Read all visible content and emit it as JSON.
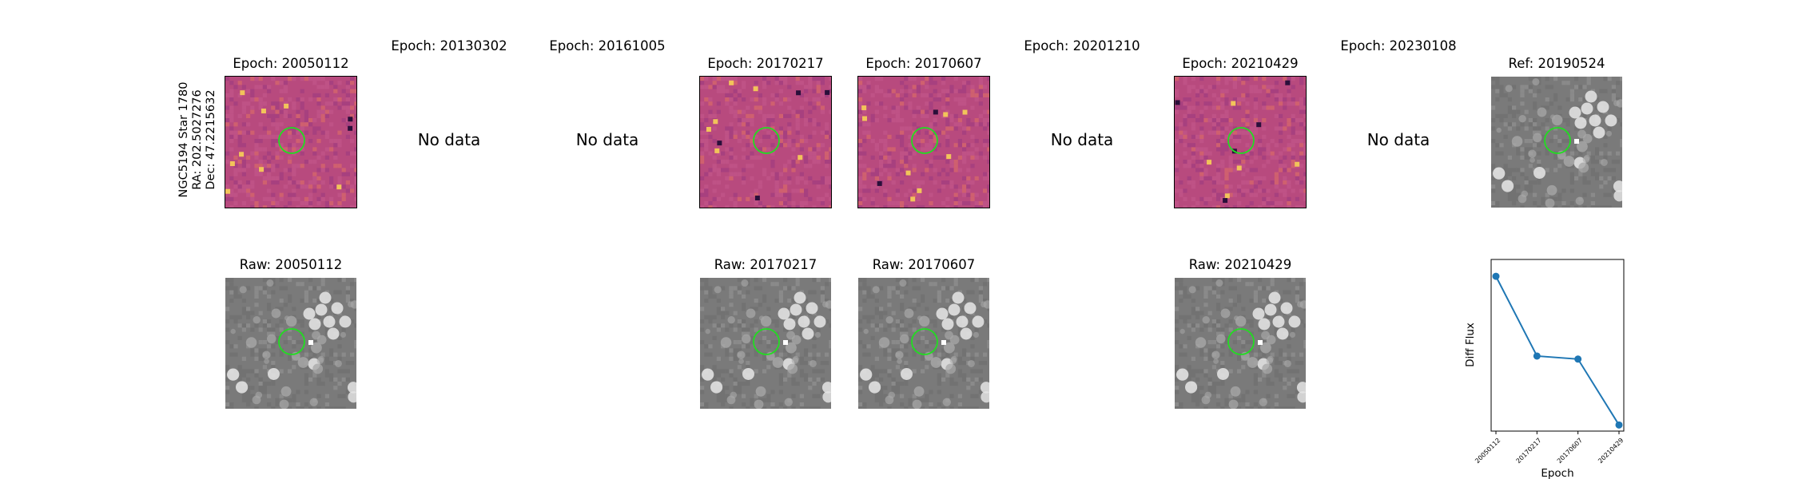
{
  "object": {
    "name": "NGC5194 Star 1780",
    "ra": "RA: 202.5027276",
    "dec": "Dec: 47.2215632"
  },
  "no_data_text": "No data",
  "top_row": [
    {
      "title": "Epoch: 20050112",
      "has_data": true
    },
    {
      "title": "Epoch: 20130302",
      "has_data": false
    },
    {
      "title": "Epoch: 20161005",
      "has_data": false
    },
    {
      "title": "Epoch: 20170217",
      "has_data": true
    },
    {
      "title": "Epoch: 20170607",
      "has_data": true
    },
    {
      "title": "Epoch: 20201210",
      "has_data": false
    },
    {
      "title": "Epoch: 20210429",
      "has_data": true
    },
    {
      "title": "Epoch: 20230108",
      "has_data": false
    },
    {
      "title": "Ref: 20190524",
      "has_data": true
    }
  ],
  "bottom_row": [
    {
      "title": "Raw: 20050112"
    },
    {
      "title": "Raw: 20170217"
    },
    {
      "title": "Raw: 20170607"
    },
    {
      "title": "Raw: 20210429"
    }
  ],
  "colors": {
    "diff_base": "#b84a7e",
    "raw_base": "#7a7a7a",
    "aperture": "#22dd22",
    "line": "#1f77b4"
  },
  "chart_data": {
    "type": "line",
    "categories": [
      "20050112",
      "20170217",
      "20170607",
      "20210429"
    ],
    "series": [
      {
        "values": [
          0.95,
          0.43,
          0.41,
          -0.02
        ]
      }
    ],
    "xlabel": "Epoch",
    "ylabel": "Diff Flux",
    "ylim": [
      -0.06,
      1.06
    ],
    "grid": false
  }
}
